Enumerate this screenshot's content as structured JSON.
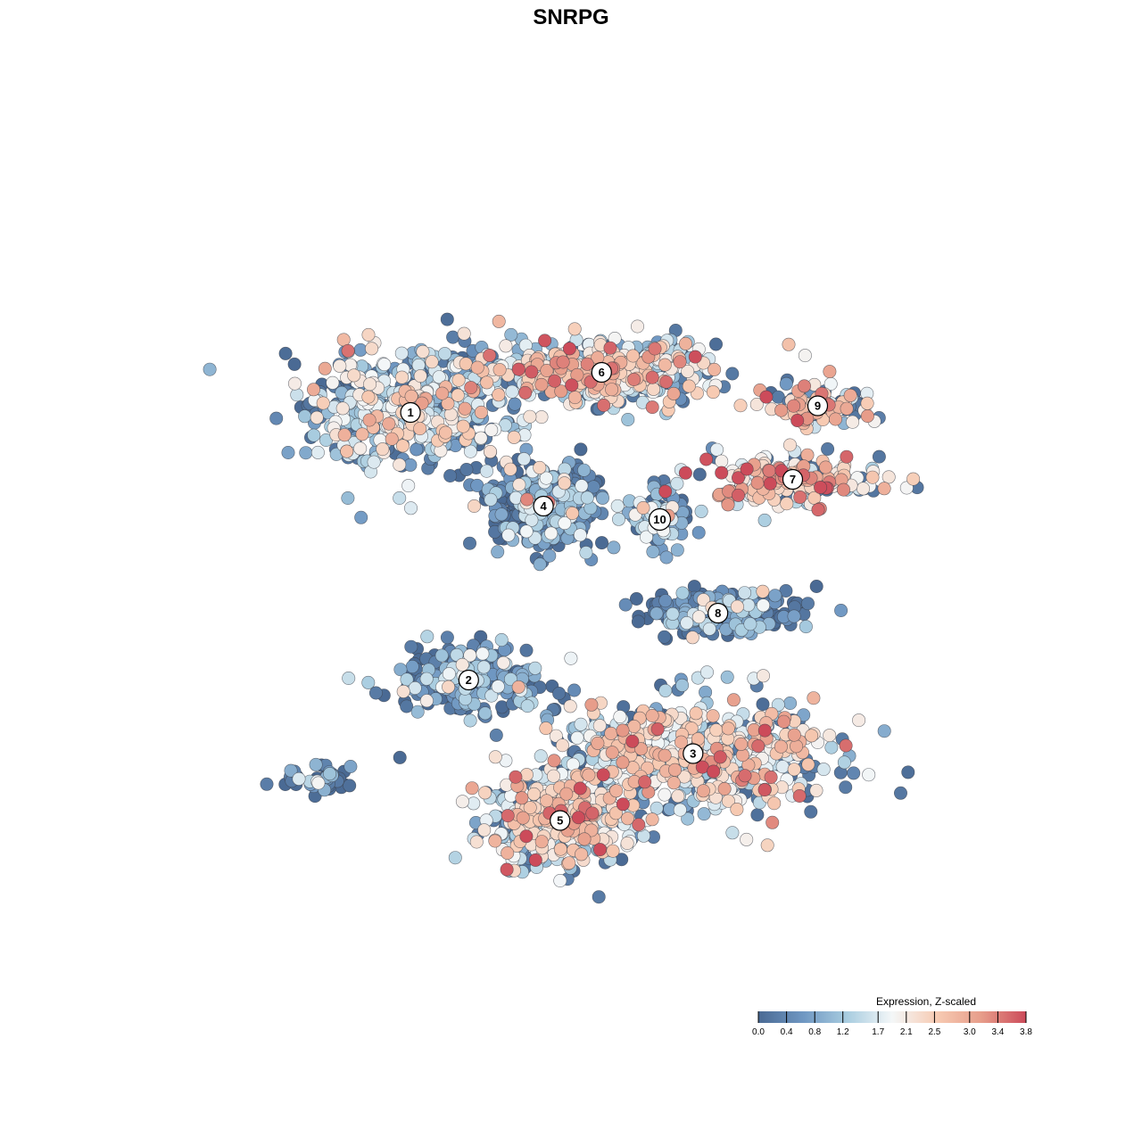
{
  "chart_data": {
    "type": "scatter",
    "title": "SNRPG",
    "xlabel": "",
    "ylabel": "",
    "grid": false,
    "legend": {
      "title": "Expression, Z-scaled",
      "placement": "bottom-right",
      "ticks": [
        "0.0",
        "0.4",
        "0.8",
        "1.2",
        "1.7",
        "2.1",
        "2.5",
        "3.0",
        "3.4",
        "3.8"
      ],
      "tick_values": [
        0.0,
        0.4,
        0.8,
        1.2,
        1.7,
        2.1,
        2.5,
        3.0,
        3.4,
        3.8
      ],
      "range": [
        0.0,
        3.8
      ],
      "colors": [
        "#4a6a94",
        "#6f97c2",
        "#a9cde0",
        "#f4f7f8",
        "#f7cbb3",
        "#e79d8a",
        "#cc4b5a"
      ]
    },
    "clusters": [
      {
        "label": "1",
        "x": -10.5,
        "y": 11.5,
        "mean": 1.5,
        "spread": [
          5.5,
          4.0
        ],
        "n": 520
      },
      {
        "label": "6",
        "x": 1.0,
        "y": 14.5,
        "mean": 2.0,
        "spread": [
          7.0,
          2.2
        ],
        "n": 480
      },
      {
        "label": "9",
        "x": 14.0,
        "y": 12.0,
        "mean": 2.3,
        "spread": [
          2.6,
          1.4
        ],
        "n": 110
      },
      {
        "label": "7",
        "x": 12.5,
        "y": 6.5,
        "mean": 2.4,
        "spread": [
          4.8,
          1.8
        ],
        "n": 230
      },
      {
        "label": "4",
        "x": -2.5,
        "y": 4.5,
        "mean": 0.5,
        "spread": [
          3.0,
          3.0
        ],
        "n": 360
      },
      {
        "label": "10",
        "x": 4.5,
        "y": 3.5,
        "mean": 1.0,
        "spread": [
          1.6,
          2.0
        ],
        "n": 90
      },
      {
        "label": "8",
        "x": 8.0,
        "y": -3.5,
        "mean": 0.4,
        "spread": [
          4.5,
          1.5
        ],
        "n": 230
      },
      {
        "label": "2",
        "x": -7.0,
        "y": -8.5,
        "mean": 0.6,
        "spread": [
          4.2,
          2.4
        ],
        "n": 240
      },
      {
        "label": "3",
        "x": 6.5,
        "y": -14.0,
        "mean": 2.0,
        "spread": [
          7.5,
          3.6
        ],
        "n": 620
      },
      {
        "label": "5",
        "x": -1.5,
        "y": -19.0,
        "mean": 1.9,
        "spread": [
          4.2,
          3.2
        ],
        "n": 420
      }
    ],
    "outliers_low": [
      {
        "x": -16.0,
        "y": -16.0,
        "mean": 0.4,
        "spread": [
          2.2,
          1.0
        ],
        "n": 45
      }
    ],
    "xlim": [
      -25,
      26
    ],
    "ylim": [
      -31,
      31
    ]
  }
}
